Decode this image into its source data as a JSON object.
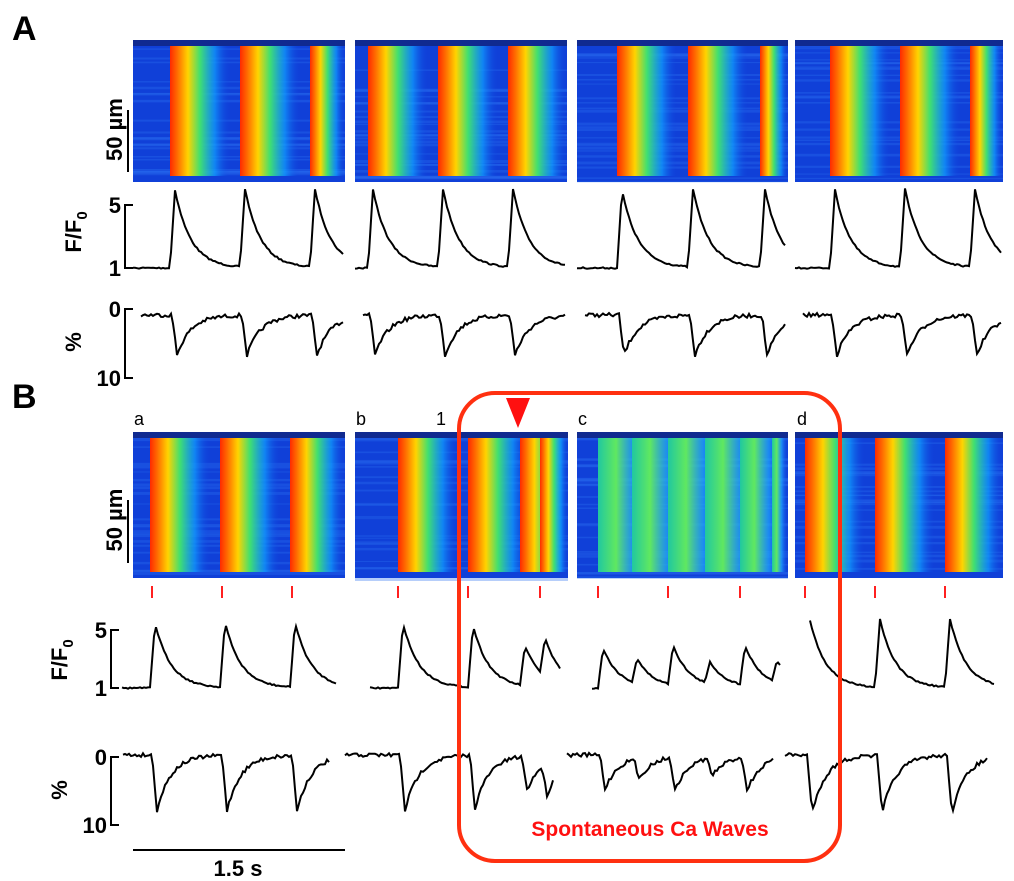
{
  "panels": [
    {
      "label": "A",
      "scale_bar": "50 µm",
      "fluorescence_axis": {
        "label": "F/F",
        "label_sub": "0",
        "ticks": [
          "5",
          "1"
        ]
      },
      "shortening_axis": {
        "label": "%",
        "ticks": [
          "0",
          "10"
        ]
      }
    },
    {
      "label": "B",
      "scale_bar": "50 µm",
      "segments": [
        "a",
        "b",
        "c",
        "d"
      ],
      "marker": "1",
      "fluorescence_axis": {
        "label": "F/F",
        "label_sub": "0",
        "ticks": [
          "5",
          "1"
        ]
      },
      "shortening_axis": {
        "label": "%",
        "ticks": [
          "0",
          "10"
        ]
      },
      "annotation": "Spontaneous Ca Waves",
      "time_bar": "1.5 s"
    }
  ]
}
